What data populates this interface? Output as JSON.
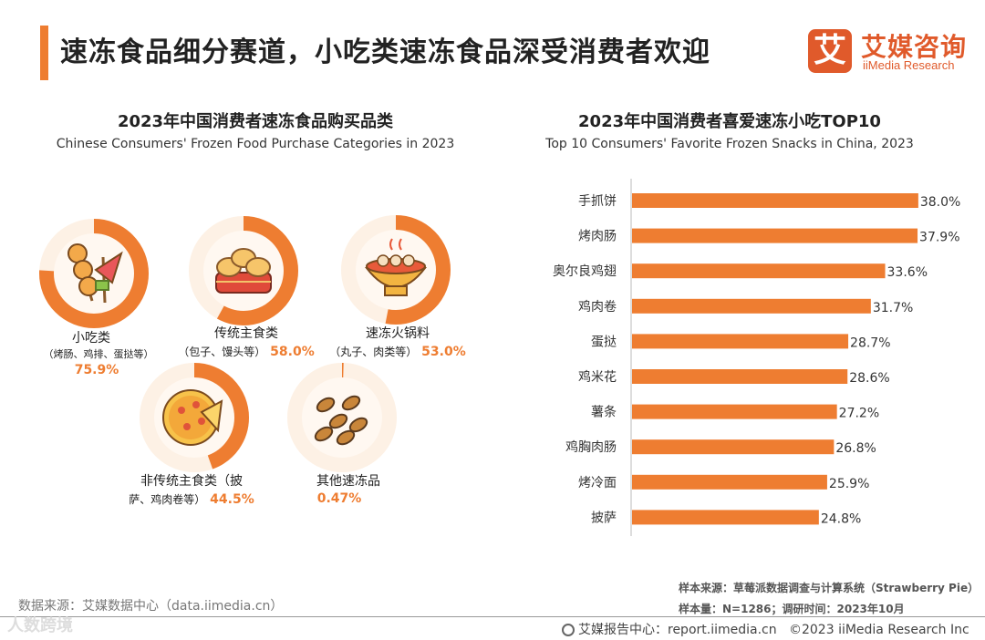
{
  "header": {
    "title": "速冻食品细分赛道，小吃类速冻食品深受消费者欢迎",
    "logo_mark": "艾",
    "logo_cn": "艾媒咨询",
    "logo_en": "iiMedia Research"
  },
  "left_panel": {
    "title": "2023年中国消费者速冻食品购买品类",
    "title_en": "Chinese Consumers' Frozen Food Purchase Categories in 2023"
  },
  "right_panel": {
    "title": "2023年中国消费者喜爱速冻小吃TOP10",
    "title_en": "Top 10 Consumers' Favorite Frozen Snacks in China, 2023"
  },
  "footer": {
    "source_left": "数据来源：艾媒数据中心（data.iimedia.cn）",
    "sample_source": "样本来源：草莓派数据调查与计算系统（Strawberry Pie）",
    "sample_size": "样本量：N=1286；调研时间：2023年10月",
    "report": "艾媒报告中心：report.iimedia.cn",
    "copyright": "©2023  iiMedia Research  Inc",
    "watermark": "人数跨境"
  },
  "colors": {
    "accent": "#ee7d31",
    "ring_bg": "#fdf1e5",
    "pct": "#ee7d31"
  },
  "chart_data": [
    {
      "type": "donut",
      "title": "2023年中国消费者速冻食品购买品类",
      "items": [
        {
          "name": "小吃类",
          "sub": "（烤肠、鸡排、蛋挞等）",
          "value": 75.9,
          "label": "75.9%",
          "icon": "skewer-icon"
        },
        {
          "name": "传统主食类",
          "sub": "（包子、馒头等）",
          "value": 58.0,
          "label": "58.0%",
          "icon": "steamed-buns-icon"
        },
        {
          "name": "速冻火锅料",
          "sub": "（丸子、肉类等）",
          "value": 53.0,
          "label": "53.0%",
          "icon": "hotpot-icon"
        },
        {
          "name": "非传统主食类（披",
          "sub": "萨、鸡肉卷等）",
          "value": 44.5,
          "label": "44.5%",
          "icon": "pizza-icon"
        },
        {
          "name": "其他速冻品",
          "sub": "",
          "value": 0.47,
          "label": "0.47%",
          "icon": "snacks-icon"
        }
      ]
    },
    {
      "type": "bar",
      "orientation": "horizontal",
      "title": "2023年中国消费者喜爱速冻小吃TOP10",
      "categories": [
        "手抓饼",
        "烤肉肠",
        "奥尔良鸡翅",
        "鸡肉卷",
        "蛋挞",
        "鸡米花",
        "薯条",
        "鸡胸肉肠",
        "烤冷面",
        "披萨"
      ],
      "values": [
        38.0,
        37.9,
        33.6,
        31.7,
        28.7,
        28.6,
        27.2,
        26.8,
        25.9,
        24.8
      ],
      "labels": [
        "38.0%",
        "37.9%",
        "33.6%",
        "31.7%",
        "28.7%",
        "28.6%",
        "27.2%",
        "26.8%",
        "25.9%",
        "24.8%"
      ],
      "xlim": [
        0,
        38.5
      ]
    }
  ]
}
